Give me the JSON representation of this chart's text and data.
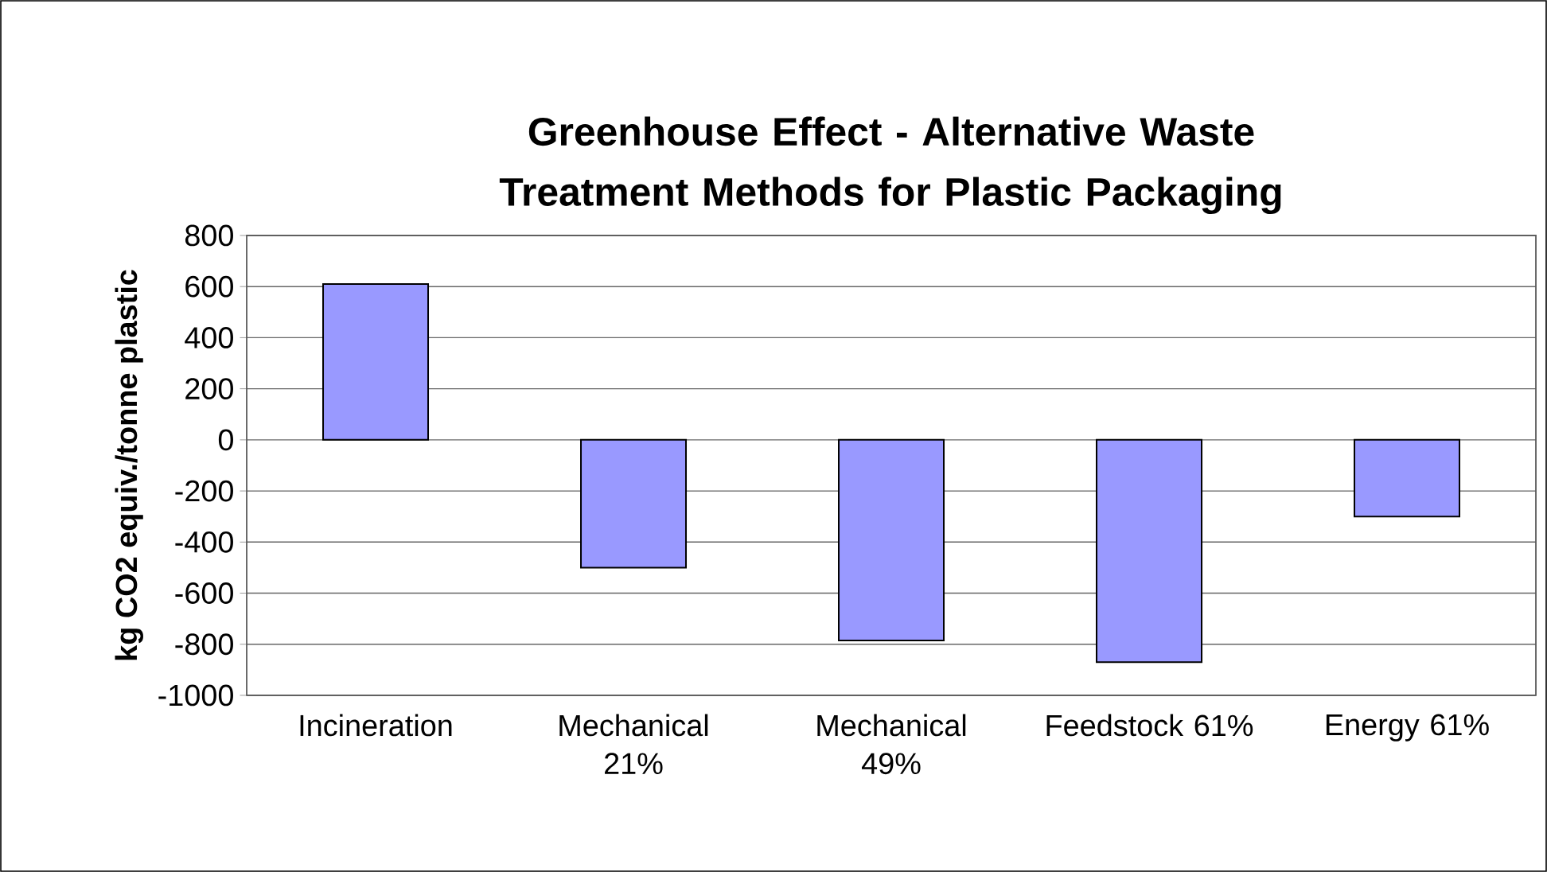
{
  "chart_data": {
    "type": "bar",
    "title": "Greenhouse Effect - Alternative Waste Treatment Methods for Plastic Packaging",
    "ylabel": "kg CO2 equiv./tonne plastic",
    "categories": [
      "Incineration",
      "Mechanical 21%",
      "Mechanical 49%",
      "Feedstock 61%",
      "Energy 61%"
    ],
    "values": [
      610,
      -500,
      -785,
      -870,
      -300
    ],
    "color": "#9999ff",
    "ylim": [
      -1000,
      800
    ],
    "yticks": [
      -1000,
      -800,
      -600,
      -400,
      -200,
      0,
      200,
      400,
      600,
      800
    ],
    "grid": "y"
  }
}
